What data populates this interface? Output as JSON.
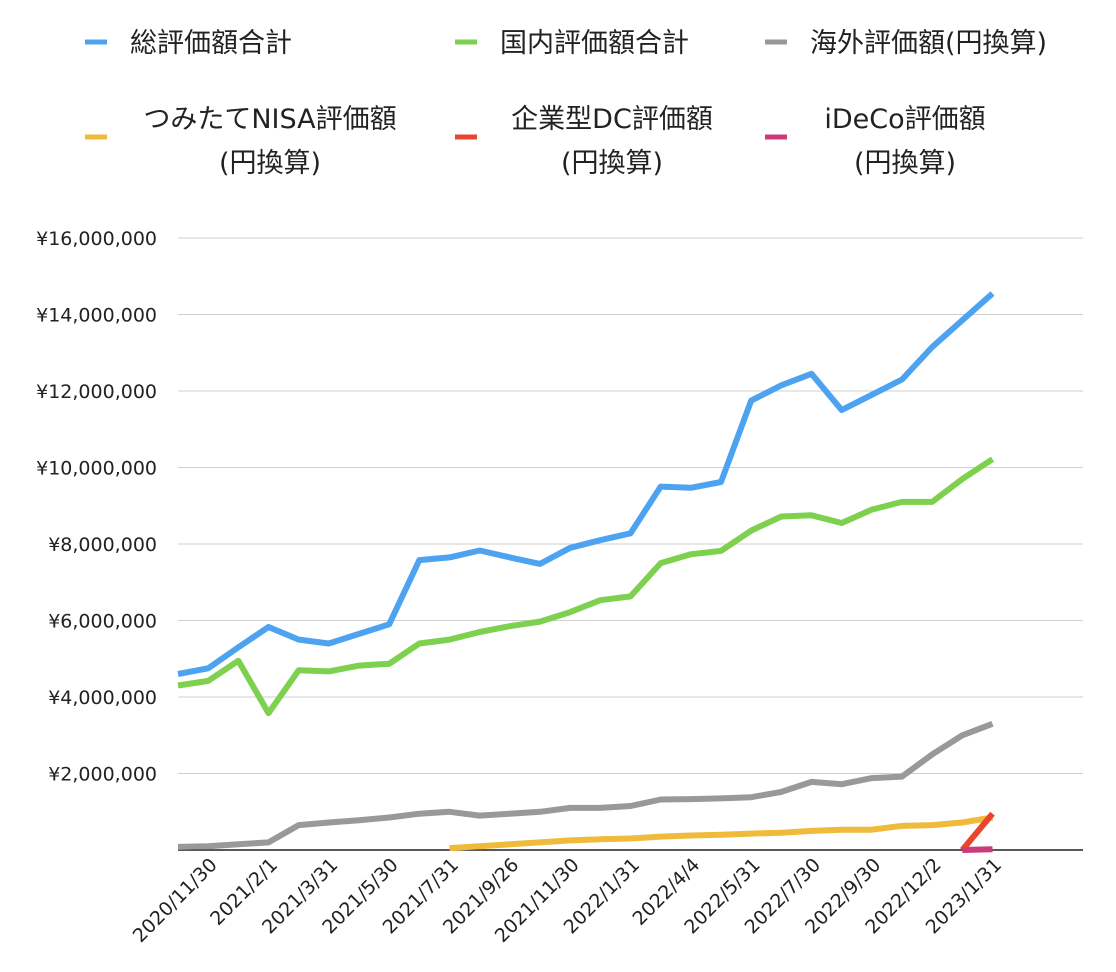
{
  "chart_data": {
    "type": "line",
    "categories": [
      null,
      "2020/11/30",
      null,
      "2021/2/1",
      null,
      "2021/3/31",
      null,
      "2021/5/30",
      null,
      "2021/7/31",
      null,
      "2021/9/26",
      null,
      "2021/11/30",
      null,
      "2022/1/31",
      null,
      "2022/4/4",
      null,
      "2022/5/31",
      null,
      "2022/7/30",
      null,
      "2022/9/30",
      null,
      "2022/12/2",
      null,
      "2023/1/31",
      null,
      null,
      null
    ],
    "series": [
      {
        "name": "総評価額合計",
        "color": "#4da3f0",
        "values": [
          4600000,
          4750000,
          5300000,
          5830000,
          5500000,
          5400000,
          5650000,
          5900000,
          7580000,
          7650000,
          7830000,
          7650000,
          7480000,
          7900000,
          8100000,
          8280000,
          9500000,
          9470000,
          9620000,
          11750000,
          12150000,
          12450000,
          11500000,
          11900000,
          12300000,
          13150000,
          13850000,
          14550000,
          null,
          null,
          null
        ]
      },
      {
        "name": "国内評価額合計",
        "color": "#7ed04f",
        "values": [
          4300000,
          4420000,
          4950000,
          3580000,
          4700000,
          4670000,
          4820000,
          4870000,
          5400000,
          5500000,
          5700000,
          5850000,
          5970000,
          6220000,
          6530000,
          6630000,
          7500000,
          7730000,
          7820000,
          8350000,
          8720000,
          8750000,
          8550000,
          8900000,
          9100000,
          9100000,
          9700000,
          10220000,
          null,
          null,
          null
        ]
      },
      {
        "name": "海外評価額(円換算)",
        "color": "#999999",
        "values": [
          80000,
          100000,
          150000,
          200000,
          650000,
          720000,
          780000,
          850000,
          950000,
          1000000,
          900000,
          950000,
          1000000,
          1100000,
          1100000,
          1150000,
          1320000,
          1330000,
          1350000,
          1380000,
          1520000,
          1780000,
          1720000,
          1880000,
          1920000,
          2500000,
          3000000,
          3300000,
          null,
          null,
          null
        ]
      },
      {
        "name": "つみたてNISA評価額\n(円換算)",
        "color": "#f0bb3a",
        "values": [
          null,
          null,
          null,
          null,
          null,
          null,
          null,
          null,
          null,
          50000,
          100000,
          150000,
          200000,
          250000,
          280000,
          300000,
          350000,
          380000,
          400000,
          430000,
          450000,
          500000,
          530000,
          530000,
          630000,
          650000,
          720000,
          850000,
          null,
          null,
          null
        ]
      },
      {
        "name": "企業型DC評価額\n(円換算)",
        "color": "#e8452c",
        "values": [
          null,
          null,
          null,
          null,
          null,
          null,
          null,
          null,
          null,
          null,
          null,
          null,
          null,
          null,
          null,
          null,
          null,
          null,
          null,
          null,
          null,
          null,
          null,
          null,
          null,
          null,
          0,
          950000,
          null,
          null,
          null
        ]
      },
      {
        "name": "iDeCo評価額\n(円換算)",
        "color": "#cc3a7a",
        "values": [
          null,
          null,
          null,
          null,
          null,
          null,
          null,
          null,
          null,
          null,
          null,
          null,
          null,
          null,
          null,
          null,
          null,
          null,
          null,
          null,
          null,
          null,
          null,
          null,
          null,
          null,
          0,
          20000,
          null,
          null,
          null
        ]
      }
    ],
    "ylim": [
      0,
      16000000
    ],
    "yticks": [
      {
        "value": 2000000,
        "label": "¥2,000,000"
      },
      {
        "value": 4000000,
        "label": "¥4,000,000"
      },
      {
        "value": 6000000,
        "label": "¥6,000,000"
      },
      {
        "value": 8000000,
        "label": "¥8,000,000"
      },
      {
        "value": 10000000,
        "label": "¥10,000,000"
      },
      {
        "value": 12000000,
        "label": "¥12,000,000"
      },
      {
        "value": 14000000,
        "label": "¥14,000,000"
      },
      {
        "value": 16000000,
        "label": "¥16,000,000"
      }
    ],
    "grid": true
  }
}
